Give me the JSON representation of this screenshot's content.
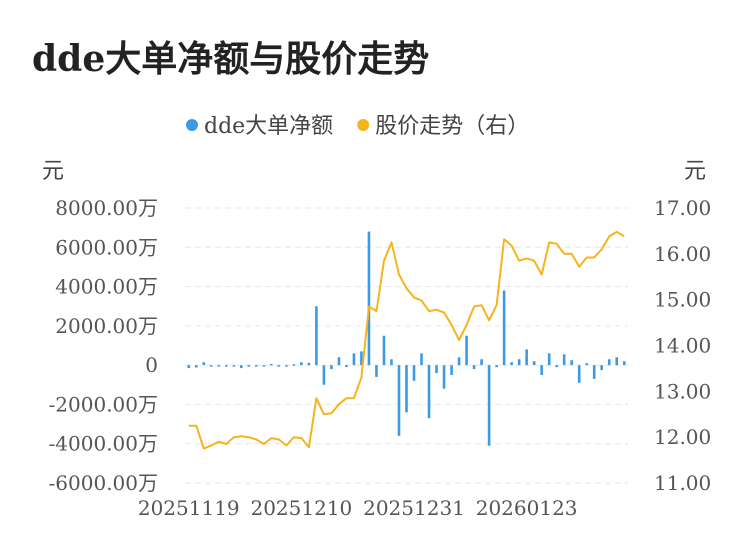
{
  "title": "dde大单净额与股价走势",
  "chart_data": {
    "type": "bar+line",
    "legend": [
      {
        "name": "dde大单净额",
        "color": "#3a9ae6"
      },
      {
        "name": "股价走势（右）",
        "color": "#f5b41e"
      }
    ],
    "left_unit": "元",
    "right_unit": "元",
    "left_ylim": [
      -6000,
      8000
    ],
    "right_ylim": [
      11,
      17
    ],
    "left_ticks": [
      8000,
      6000,
      4000,
      2000,
      0,
      -2000,
      -4000,
      -6000
    ],
    "left_tick_labels": [
      "8000.00万",
      "6000.00万",
      "4000.00万",
      "2000.00万",
      "0",
      "-2000.00万",
      "-4000.00万",
      "-6000.00万"
    ],
    "right_ticks": [
      17,
      16,
      15,
      14,
      13,
      12,
      11
    ],
    "right_tick_labels": [
      "17.00",
      "16.00",
      "15.00",
      "14.00",
      "13.00",
      "12.00",
      "11.00"
    ],
    "x_tick_labels": [
      {
        "index": 0,
        "label": "20251119"
      },
      {
        "index": 15,
        "label": "20251210"
      },
      {
        "index": 30,
        "label": "20251231"
      },
      {
        "index": 45,
        "label": "20260123"
      }
    ],
    "grid": true,
    "legend_position": "top-center",
    "series": [
      {
        "name": "dde大单净额",
        "kind": "bar",
        "axis": "left",
        "values": [
          -150,
          -120,
          150,
          -60,
          -50,
          -40,
          -60,
          -150,
          -40,
          -30,
          -40,
          60,
          -30,
          -40,
          50,
          150,
          120,
          3000,
          -1000,
          -200,
          400,
          -100,
          600,
          700,
          6800,
          -600,
          1500,
          300,
          -3600,
          -2400,
          -800,
          600,
          -2700,
          -400,
          -1200,
          -500,
          400,
          1500,
          -200,
          300,
          -4100,
          -100,
          3800,
          150,
          300,
          800,
          200,
          -500,
          600,
          -100,
          550,
          250,
          -900,
          100,
          -700,
          -250,
          300,
          400,
          200
        ]
      },
      {
        "name": "股价走势（右）",
        "kind": "line",
        "axis": "right",
        "values": [
          12.25,
          12.25,
          11.75,
          11.82,
          11.9,
          11.85,
          12.0,
          12.02,
          12.0,
          11.95,
          11.85,
          11.98,
          11.95,
          11.82,
          12.0,
          11.98,
          11.78,
          12.85,
          12.5,
          12.52,
          12.72,
          12.85,
          12.85,
          13.3,
          14.85,
          14.75,
          15.85,
          16.25,
          15.55,
          15.25,
          15.05,
          14.98,
          14.75,
          14.78,
          14.72,
          14.45,
          14.12,
          14.45,
          14.85,
          14.88,
          14.55,
          14.88,
          16.32,
          16.18,
          15.85,
          15.9,
          15.85,
          15.55,
          16.25,
          16.22,
          16.0,
          16.0,
          15.72,
          15.92,
          15.92,
          16.1,
          16.38,
          16.48,
          16.38
        ]
      }
    ]
  }
}
